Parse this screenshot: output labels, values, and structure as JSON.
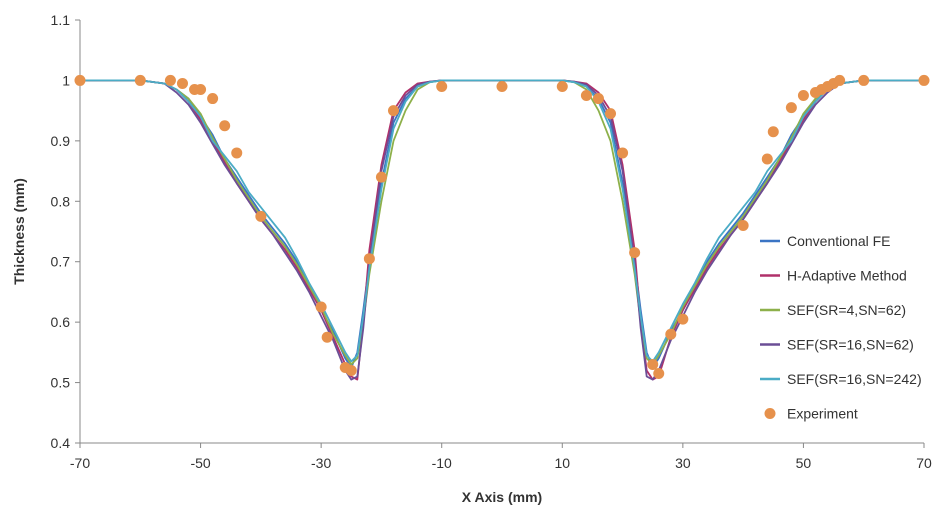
{
  "chart_data": {
    "type": "line",
    "title": "",
    "xlabel": "X Axis (mm)",
    "ylabel": "Thickness (mm)",
    "xlim": [
      -70,
      70
    ],
    "ylim": [
      0.4,
      1.1
    ],
    "x_ticks": [
      -70,
      -50,
      -30,
      -10,
      10,
      30,
      50,
      70
    ],
    "y_ticks": [
      0.4,
      0.5,
      0.6,
      0.7,
      0.8,
      0.9,
      1,
      1.1
    ],
    "x_tick_labels": [
      "-70",
      "-50",
      "-30",
      "-10",
      "10",
      "30",
      "50",
      "70"
    ],
    "y_tick_labels": [
      "0.4",
      "0.5",
      "0.6",
      "0.7",
      "0.8",
      "0.9",
      "1",
      "1.1"
    ],
    "grid": false,
    "legend_position": "right",
    "series": [
      {
        "name": "Conventional FE",
        "color": "#3B74C4",
        "style": "line",
        "x": [
          -70,
          -60,
          -56,
          -54,
          -52,
          -50,
          -48,
          -46,
          -44,
          -42,
          -40,
          -38,
          -36,
          -34,
          -32,
          -30,
          -28,
          -26,
          -25,
          -24,
          -23,
          -22,
          -20,
          -18,
          -16,
          -14,
          -12,
          -10,
          0,
          10,
          12,
          14,
          16,
          18,
          20,
          22,
          23,
          24,
          25,
          26,
          28,
          30,
          32,
          34,
          36,
          38,
          40,
          42,
          44,
          46,
          48,
          50,
          52,
          54,
          56,
          60,
          70
        ],
        "y": [
          1.0,
          1.0,
          0.995,
          0.985,
          0.97,
          0.94,
          0.91,
          0.87,
          0.84,
          0.81,
          0.78,
          0.755,
          0.73,
          0.7,
          0.66,
          0.62,
          0.585,
          0.54,
          0.525,
          0.55,
          0.62,
          0.7,
          0.83,
          0.93,
          0.97,
          0.99,
          0.997,
          1.0,
          1.0,
          1.0,
          0.997,
          0.99,
          0.97,
          0.93,
          0.83,
          0.7,
          0.62,
          0.55,
          0.525,
          0.54,
          0.585,
          0.62,
          0.66,
          0.7,
          0.73,
          0.755,
          0.78,
          0.81,
          0.84,
          0.87,
          0.91,
          0.94,
          0.97,
          0.985,
          0.995,
          1.0,
          1.0
        ]
      },
      {
        "name": "H-Adaptive Method",
        "color": "#B0306A",
        "style": "line",
        "x": [
          -70,
          -60,
          -56,
          -54,
          -52,
          -50,
          -48,
          -46,
          -44,
          -42,
          -40,
          -38,
          -36,
          -34,
          -32,
          -30,
          -28,
          -26,
          -25,
          -24,
          -23,
          -22,
          -20,
          -18,
          -16,
          -14,
          -12,
          -10,
          0,
          10,
          12,
          14,
          16,
          18,
          20,
          22,
          23,
          24,
          25,
          26,
          28,
          30,
          32,
          34,
          36,
          38,
          40,
          42,
          44,
          46,
          48,
          50,
          52,
          54,
          56,
          60,
          70
        ],
        "y": [
          1.0,
          1.0,
          0.995,
          0.985,
          0.965,
          0.935,
          0.9,
          0.865,
          0.83,
          0.8,
          0.77,
          0.745,
          0.72,
          0.69,
          0.655,
          0.62,
          0.575,
          0.53,
          0.51,
          0.505,
          0.6,
          0.72,
          0.86,
          0.95,
          0.98,
          0.995,
          0.998,
          1.0,
          1.0,
          1.0,
          0.998,
          0.995,
          0.98,
          0.95,
          0.86,
          0.72,
          0.6,
          0.52,
          0.505,
          0.51,
          0.575,
          0.62,
          0.655,
          0.69,
          0.72,
          0.745,
          0.77,
          0.8,
          0.83,
          0.865,
          0.9,
          0.935,
          0.965,
          0.985,
          0.995,
          1.0,
          1.0
        ]
      },
      {
        "name": "SEF(SR=4,SN=62)",
        "color": "#8DB04A",
        "style": "line",
        "x": [
          -70,
          -60,
          -56,
          -54,
          -52,
          -50,
          -48,
          -46,
          -44,
          -42,
          -40,
          -38,
          -36,
          -34,
          -32,
          -30,
          -28,
          -26,
          -25,
          -24,
          -23,
          -22,
          -20,
          -18,
          -16,
          -14,
          -12,
          -10,
          0,
          10,
          12,
          14,
          16,
          18,
          20,
          22,
          23,
          24,
          25,
          26,
          28,
          30,
          32,
          34,
          36,
          38,
          40,
          42,
          44,
          46,
          48,
          50,
          52,
          54,
          56,
          60,
          70
        ],
        "y": [
          1.0,
          1.0,
          0.995,
          0.985,
          0.97,
          0.945,
          0.905,
          0.87,
          0.835,
          0.805,
          0.775,
          0.75,
          0.725,
          0.695,
          0.66,
          0.625,
          0.58,
          0.545,
          0.53,
          0.54,
          0.6,
          0.68,
          0.8,
          0.9,
          0.95,
          0.985,
          0.997,
          1.0,
          1.0,
          1.0,
          0.997,
          0.985,
          0.95,
          0.9,
          0.8,
          0.68,
          0.6,
          0.54,
          0.53,
          0.545,
          0.58,
          0.625,
          0.66,
          0.695,
          0.725,
          0.75,
          0.775,
          0.805,
          0.835,
          0.87,
          0.905,
          0.945,
          0.97,
          0.985,
          0.995,
          1.0,
          1.0
        ]
      },
      {
        "name": "SEF(SR=16,SN=62)",
        "color": "#6B4E96",
        "style": "line",
        "x": [
          -70,
          -60,
          -56,
          -54,
          -52,
          -50,
          -48,
          -46,
          -44,
          -42,
          -40,
          -38,
          -36,
          -34,
          -32,
          -30,
          -28,
          -26,
          -25,
          -24,
          -23,
          -22,
          -20,
          -18,
          -16,
          -14,
          -12,
          -10,
          0,
          10,
          12,
          14,
          16,
          18,
          20,
          22,
          23,
          24,
          25,
          26,
          28,
          30,
          32,
          34,
          36,
          38,
          40,
          42,
          44,
          46,
          48,
          50,
          52,
          54,
          56,
          60,
          70
        ],
        "y": [
          1.0,
          1.0,
          0.995,
          0.98,
          0.96,
          0.93,
          0.895,
          0.86,
          0.83,
          0.8,
          0.77,
          0.745,
          0.715,
          0.685,
          0.65,
          0.61,
          0.57,
          0.52,
          0.505,
          0.51,
          0.59,
          0.7,
          0.85,
          0.94,
          0.975,
          0.993,
          0.998,
          1.0,
          1.0,
          1.0,
          0.998,
          0.993,
          0.975,
          0.94,
          0.85,
          0.7,
          0.59,
          0.51,
          0.505,
          0.52,
          0.57,
          0.61,
          0.65,
          0.685,
          0.715,
          0.745,
          0.77,
          0.8,
          0.83,
          0.86,
          0.895,
          0.93,
          0.96,
          0.98,
          0.995,
          1.0,
          1.0
        ]
      },
      {
        "name": "SEF(SR=16,SN=242)",
        "color": "#4BACC6",
        "style": "line",
        "x": [
          -70,
          -60,
          -56,
          -54,
          -52,
          -50,
          -48,
          -46,
          -44,
          -42,
          -40,
          -38,
          -36,
          -34,
          -32,
          -30,
          -28,
          -26,
          -25,
          -24,
          -23,
          -22,
          -20,
          -18,
          -16,
          -14,
          -12,
          -10,
          0,
          10,
          12,
          14,
          16,
          18,
          20,
          22,
          23,
          24,
          25,
          26,
          28,
          30,
          32,
          34,
          36,
          38,
          40,
          42,
          44,
          46,
          48,
          50,
          52,
          54,
          56,
          60,
          70
        ],
        "y": [
          1.0,
          1.0,
          0.995,
          0.985,
          0.965,
          0.94,
          0.9,
          0.875,
          0.85,
          0.815,
          0.79,
          0.765,
          0.74,
          0.705,
          0.665,
          0.63,
          0.59,
          0.55,
          0.535,
          0.545,
          0.61,
          0.69,
          0.82,
          0.92,
          0.965,
          0.99,
          0.997,
          1.0,
          1.0,
          1.0,
          0.997,
          0.99,
          0.965,
          0.92,
          0.82,
          0.69,
          0.61,
          0.545,
          0.535,
          0.55,
          0.59,
          0.63,
          0.665,
          0.705,
          0.74,
          0.765,
          0.79,
          0.815,
          0.85,
          0.875,
          0.9,
          0.94,
          0.965,
          0.985,
          0.995,
          1.0,
          1.0
        ]
      },
      {
        "name": "Experiment",
        "color": "#E6914C",
        "style": "marker",
        "x": [
          -70,
          -60,
          -55,
          -53,
          -51,
          -50,
          -48,
          -46,
          -44,
          -40,
          -30,
          -29,
          -26,
          -25,
          -22,
          -20,
          -18,
          -10,
          0,
          10,
          14,
          16,
          18,
          20,
          22,
          25,
          26,
          28,
          30,
          40,
          44,
          45,
          48,
          50,
          52,
          53,
          54,
          55,
          56,
          60,
          70
        ],
        "y": [
          1.0,
          1.0,
          1.0,
          0.995,
          0.985,
          0.985,
          0.97,
          0.925,
          0.88,
          0.775,
          0.625,
          0.575,
          0.525,
          0.52,
          0.705,
          0.84,
          0.95,
          0.99,
          0.99,
          0.99,
          0.975,
          0.97,
          0.945,
          0.88,
          0.715,
          0.53,
          0.515,
          0.58,
          0.605,
          0.76,
          0.87,
          0.915,
          0.955,
          0.975,
          0.98,
          0.985,
          0.99,
          0.995,
          1.0,
          1.0,
          1.0
        ]
      }
    ]
  }
}
